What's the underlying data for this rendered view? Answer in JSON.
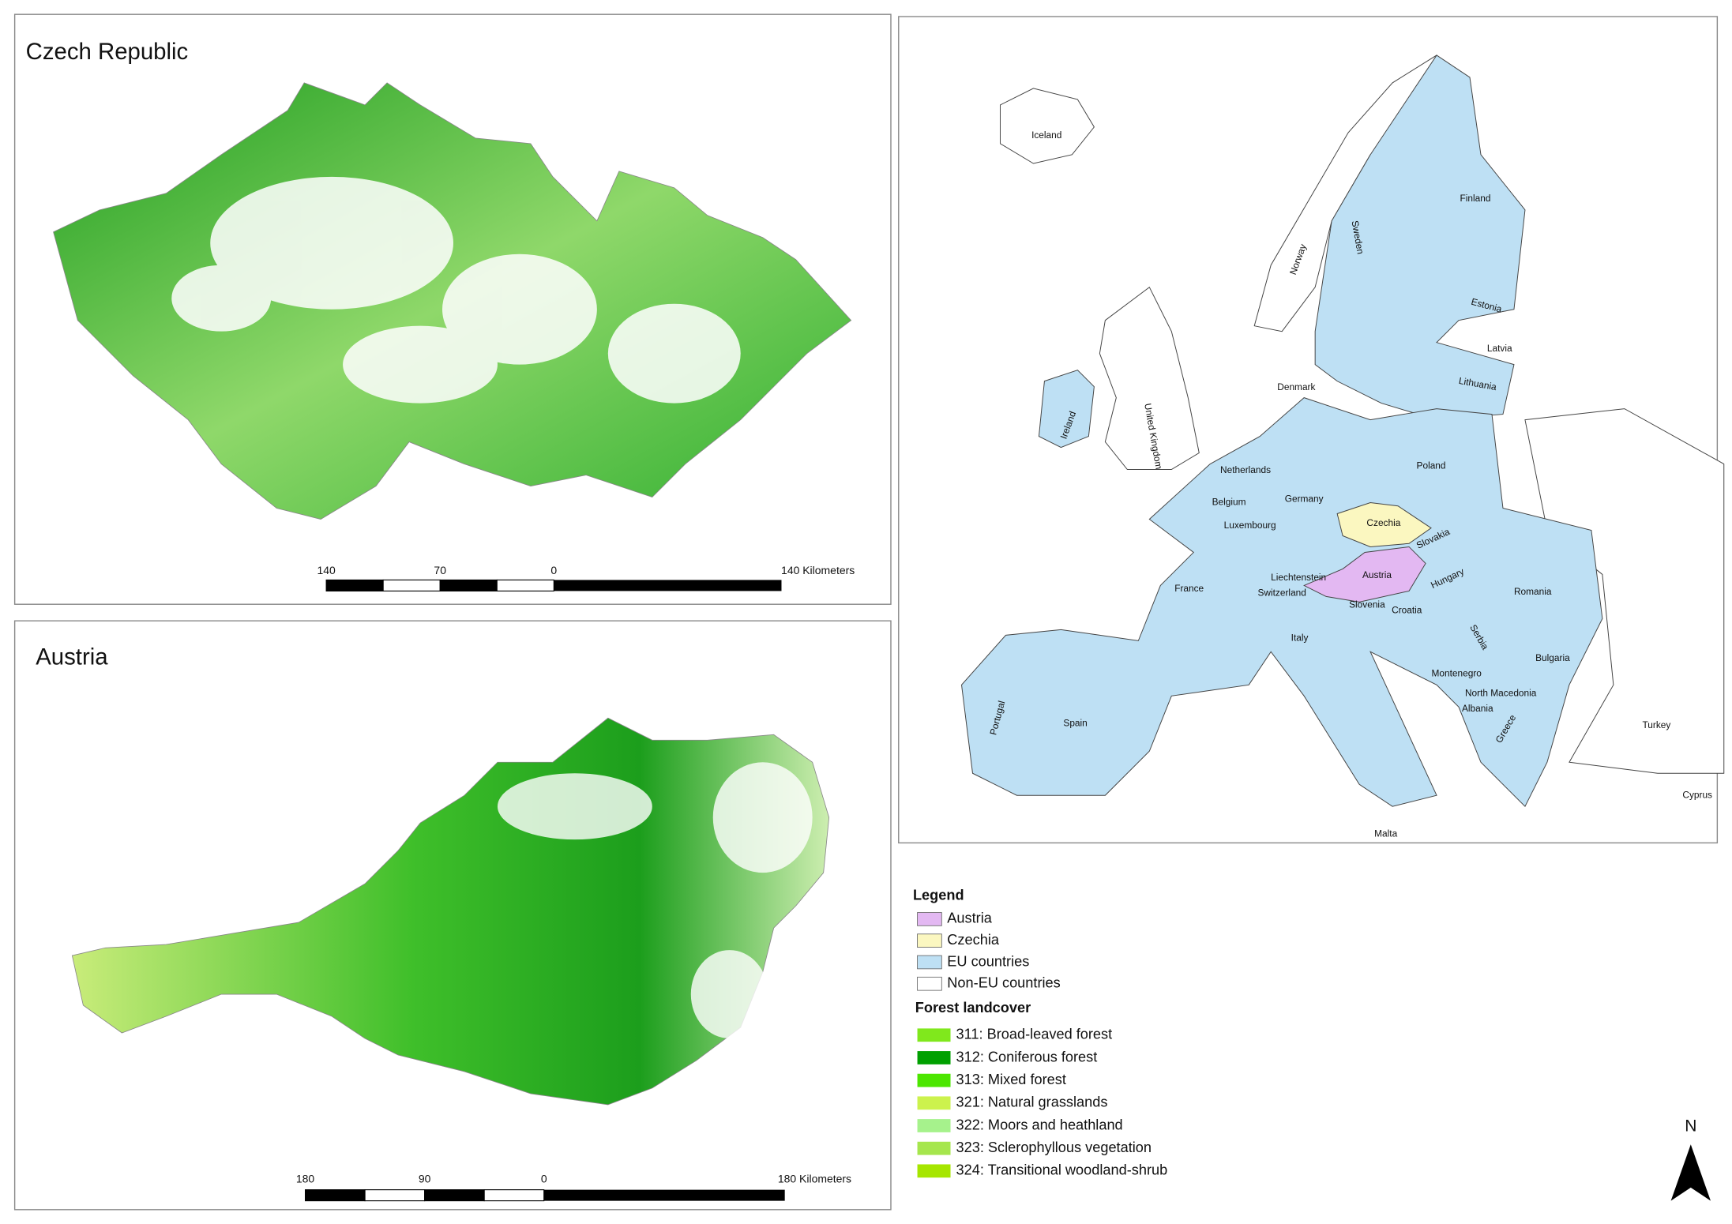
{
  "panels": [
    {
      "title": "Czech Republic",
      "scale_labels": [
        "140",
        "70",
        "0",
        "140 Kilometers"
      ]
    },
    {
      "title": "Austria",
      "scale_labels": [
        "180",
        "90",
        "0",
        "180 Kilometers"
      ]
    }
  ],
  "europe_map": {
    "country_labels": [
      "Iceland",
      "Norway",
      "Sweden",
      "Finland",
      "Estonia",
      "Latvia",
      "Lithuania",
      "Denmark",
      "Ireland",
      "United Kingdom",
      "Netherlands",
      "Belgium",
      "Luxembourg",
      "Germany",
      "Poland",
      "Czechia",
      "Slovakia",
      "Austria",
      "Hungary",
      "Liechtenstein",
      "Switzerland",
      "Slovenia",
      "Croatia",
      "Romania",
      "France",
      "Serbia",
      "Italy",
      "Montenegro",
      "Bulgaria",
      "North Macedonia",
      "Albania",
      "Portugal",
      "Spain",
      "Greece",
      "Turkey",
      "Cyprus",
      "Malta"
    ]
  },
  "legend": {
    "title": "Legend",
    "items": [
      {
        "label": "Austria",
        "color": "#e3b8f2"
      },
      {
        "label": "Czechia",
        "color": "#fbf7c0"
      },
      {
        "label": "EU countries",
        "color": "#bee0f4"
      },
      {
        "label": "Non-EU countries",
        "color": "#ffffff"
      }
    ],
    "forest_title": "Forest landcover",
    "forest_items": [
      {
        "label": "311: Broad-leaved forest",
        "color": "#80e81c"
      },
      {
        "label": "312: Coniferous forest",
        "color": "#00a000"
      },
      {
        "label": "313: Mixed forest",
        "color": "#4ce600"
      },
      {
        "label": "321: Natural grasslands",
        "color": "#ccf24d"
      },
      {
        "label": "322: Moors and heathland",
        "color": "#a6f28c"
      },
      {
        "label": "323: Sclerophyllous vegetation",
        "color": "#a6e64d"
      },
      {
        "label": "324: Transitional woodland-shrub",
        "color": "#a6e600"
      }
    ]
  },
  "north_label": "N"
}
